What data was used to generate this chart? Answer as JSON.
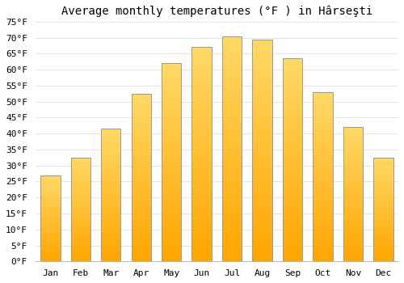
{
  "title": "Average monthly temperatures (°F ) in Hârseşti",
  "months": [
    "Jan",
    "Feb",
    "Mar",
    "Apr",
    "May",
    "Jun",
    "Jul",
    "Aug",
    "Sep",
    "Oct",
    "Nov",
    "Dec"
  ],
  "values": [
    27,
    32.5,
    41.5,
    52.5,
    62,
    67,
    70.5,
    69.5,
    63.5,
    53,
    42,
    32.5
  ],
  "bar_color_top": "#FFD966",
  "bar_color_bottom": "#FFA500",
  "bar_edge_color": "#999999",
  "background_color": "#FFFFFF",
  "plot_bg_color": "#FFFFFF",
  "grid_color": "#DDDDDD",
  "ylim": [
    0,
    75
  ],
  "yticks": [
    0,
    5,
    10,
    15,
    20,
    25,
    30,
    35,
    40,
    45,
    50,
    55,
    60,
    65,
    70,
    75
  ],
  "title_fontsize": 10,
  "tick_fontsize": 8,
  "font_family": "monospace"
}
